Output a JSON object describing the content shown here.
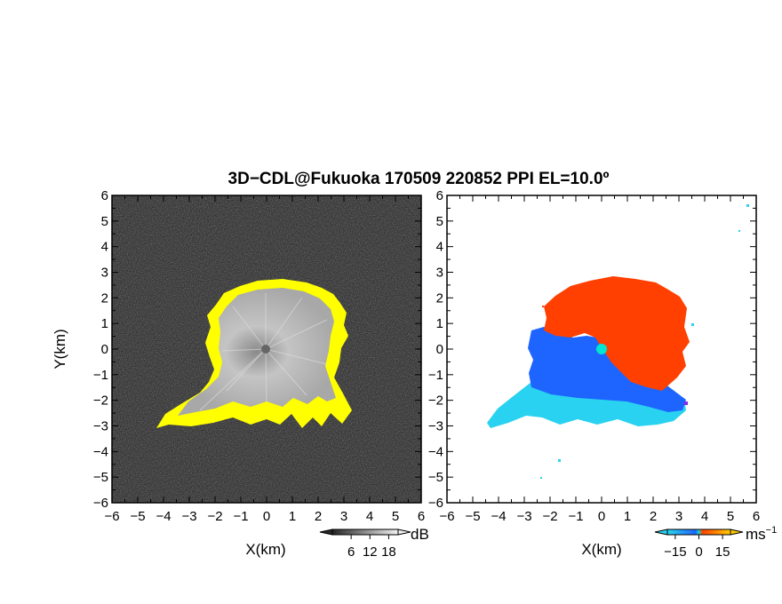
{
  "title": "3D−CDL@Fukuoka 170509 220852 PPI EL=10.0º",
  "chart_data": [
    {
      "type": "heatmap",
      "panel": "left",
      "xlabel": "X(km)",
      "ylabel": "Y(km)",
      "xlim": [
        -6,
        6
      ],
      "ylim": [
        -6,
        6
      ],
      "x_ticks": [
        "−6",
        "−5",
        "−4",
        "−3",
        "−2",
        "−1",
        "0",
        "1",
        "2",
        "3",
        "4",
        "5",
        "6"
      ],
      "y_ticks": [
        "−6",
        "−5",
        "−4",
        "−3",
        "−2",
        "−1",
        "0",
        "1",
        "2",
        "3",
        "4",
        "5",
        "6"
      ],
      "background_color": "#202020",
      "echo_color": "#b8b8b8",
      "edge_color": "#ffff00",
      "colorbar": {
        "unit": "dB",
        "tick_labels": [
          "6",
          "12",
          "18"
        ],
        "ticks": [
          6,
          12,
          18
        ],
        "range": [
          0,
          21
        ]
      }
    },
    {
      "type": "heatmap",
      "panel": "right",
      "xlabel": "X(km)",
      "xlim": [
        -6,
        6
      ],
      "ylim": [
        -6,
        6
      ],
      "x_ticks": [
        "−6",
        "−5",
        "−4",
        "−3",
        "−2",
        "−1",
        "0",
        "1",
        "2",
        "3",
        "4",
        "5",
        "6"
      ],
      "y_ticks": [
        "−6",
        "−5",
        "−4",
        "−3",
        "−2",
        "−1",
        "0",
        "1",
        "2",
        "3",
        "4",
        "5",
        "6"
      ],
      "colors": {
        "away": "#ff4000",
        "toward": "#1e64ff",
        "far_toward": "#28d2f0",
        "zero": "#00e6d2"
      },
      "colorbar": {
        "unit": "ms",
        "unit_sup": "−1",
        "tick_labels": [
          "−15",
          "0",
          "15"
        ],
        "ticks": [
          -15,
          0,
          15
        ],
        "range": [
          -20,
          20
        ]
      }
    }
  ]
}
